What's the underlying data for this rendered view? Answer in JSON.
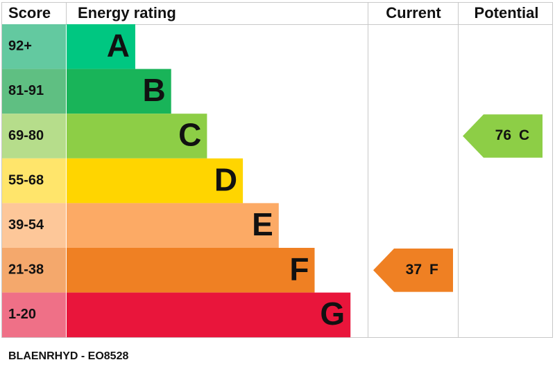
{
  "headers": {
    "score": "Score",
    "rating": "Energy rating",
    "current": "Current",
    "potential": "Potential"
  },
  "bands": [
    {
      "score": "92+",
      "letter": "A",
      "color": "#00c781",
      "score_color": "#63c9a0"
    },
    {
      "score": "81-91",
      "letter": "B",
      "color": "#19b459",
      "score_color": "#5fbf82"
    },
    {
      "score": "69-80",
      "letter": "C",
      "color": "#8dce46",
      "score_color": "#b6dd8b"
    },
    {
      "score": "55-68",
      "letter": "D",
      "color": "#ffd500",
      "score_color": "#ffe56b"
    },
    {
      "score": "39-54",
      "letter": "E",
      "color": "#fcaa65",
      "score_color": "#fdc799"
    },
    {
      "score": "21-38",
      "letter": "F",
      "color": "#ef8023",
      "score_color": "#f4a86c"
    },
    {
      "score": "1-20",
      "letter": "G",
      "color": "#e9153b",
      "score_color": "#ef7087"
    }
  ],
  "current": {
    "value": 37,
    "letter": "F",
    "color": "#ef8023"
  },
  "potential": {
    "value": 76,
    "letter": "C",
    "color": "#8dce46"
  },
  "footer": "BLAENRHYD - EO8528"
}
